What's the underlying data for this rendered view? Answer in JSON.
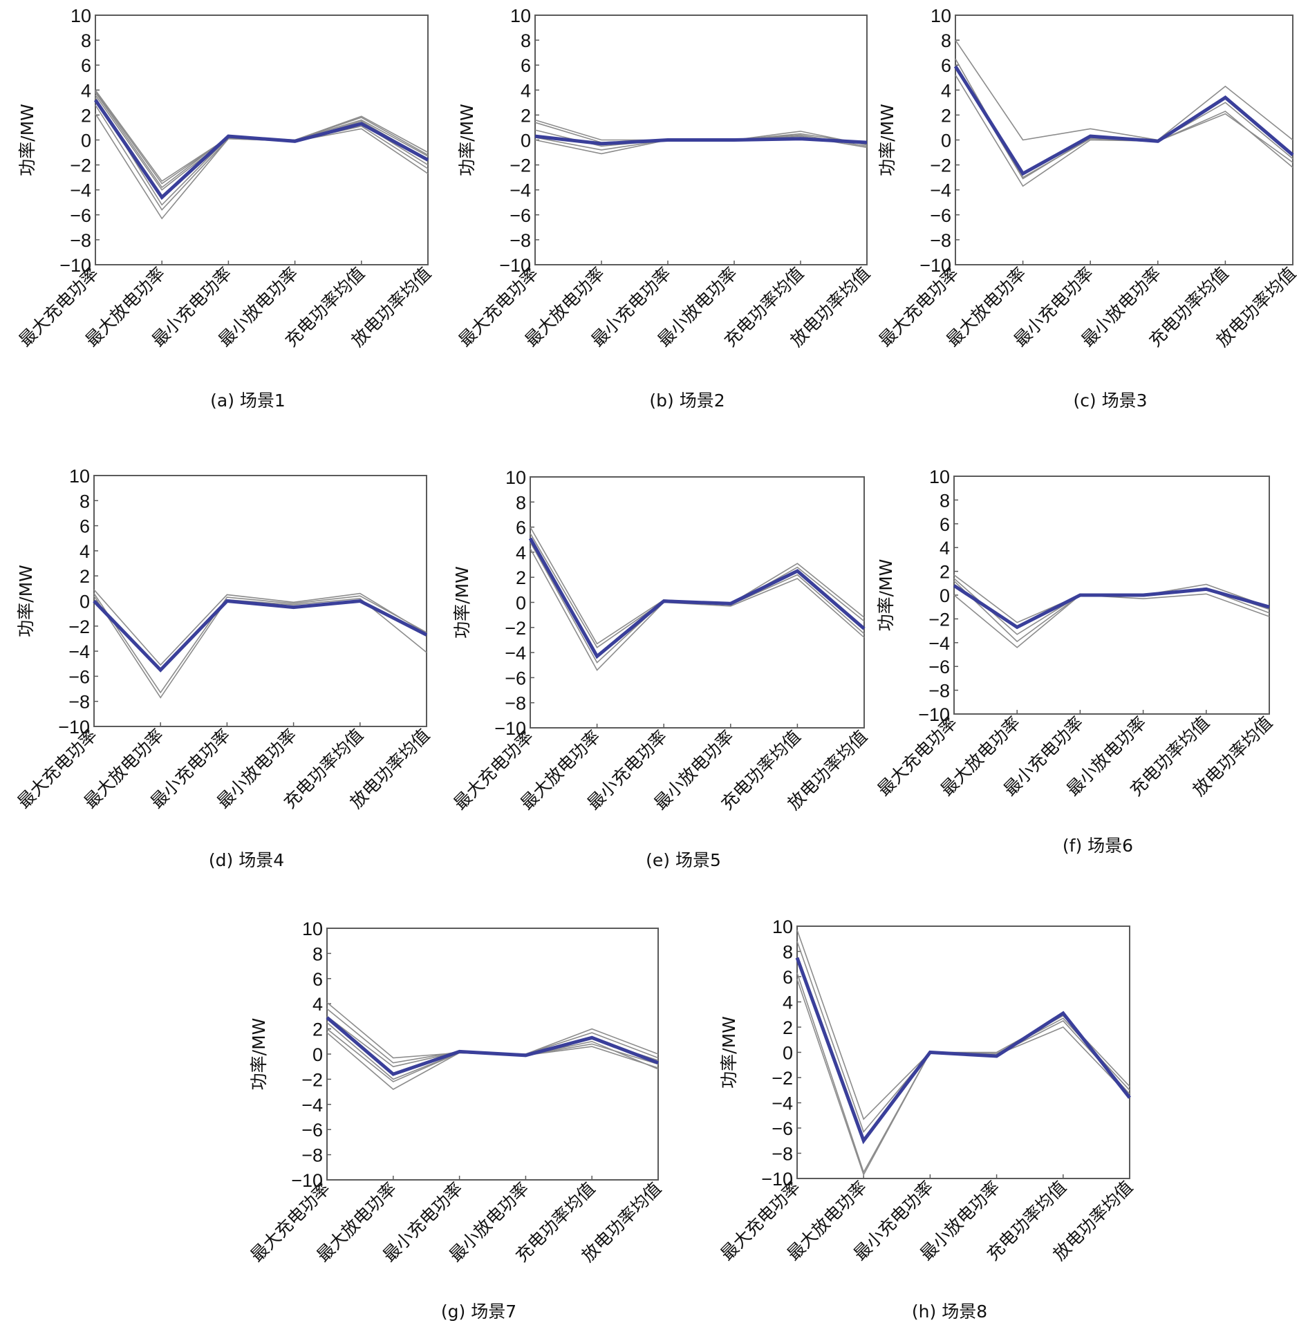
{
  "figure": {
    "colors": {
      "mean_line": "#3a3f9a",
      "sample_lines": "#8c8c8c",
      "frame": "#5a5a5a"
    }
  },
  "chart_data": [
    {
      "id": "a",
      "type": "line",
      "title": "(a) 场景1",
      "xlabel": "",
      "ylabel": "功率/MW",
      "categories": [
        "最大充电功率",
        "最大放电功率",
        "最小充电功率",
        "最小放电功率",
        "充电功率均值",
        "放电功率均值"
      ],
      "ylim": [
        -10,
        10
      ],
      "yticks": [
        10,
        8,
        6,
        4,
        2,
        0,
        -2,
        -4,
        -6,
        -8,
        -10
      ],
      "ytick_labels": [
        "10",
        "8",
        "6",
        "4",
        "2",
        "0",
        "−2",
        "−4",
        "−6",
        "−8",
        "−10"
      ],
      "grid": false,
      "series": [
        {
          "name": "sample",
          "values": [
            4.0,
            -3.3,
            0.2,
            0.0,
            1.9,
            -1.0
          ]
        },
        {
          "name": "sample",
          "values": [
            3.9,
            -3.5,
            0.2,
            0.0,
            1.8,
            -1.2
          ]
        },
        {
          "name": "sample",
          "values": [
            3.8,
            -3.8,
            0.3,
            0.0,
            1.6,
            -1.3
          ]
        },
        {
          "name": "sample",
          "values": [
            3.6,
            -4.0,
            0.2,
            -0.1,
            1.5,
            -1.6
          ]
        },
        {
          "name": "sample",
          "values": [
            3.4,
            -5.2,
            0.2,
            -0.1,
            1.3,
            -2.0
          ]
        },
        {
          "name": "sample",
          "values": [
            2.8,
            -5.6,
            0.1,
            -0.1,
            1.1,
            -2.3
          ]
        },
        {
          "name": "sample",
          "values": [
            2.1,
            -6.3,
            0.1,
            -0.1,
            0.9,
            -2.7
          ]
        },
        {
          "name": "mean",
          "values": [
            3.2,
            -4.6,
            0.3,
            -0.1,
            1.3,
            -1.6
          ]
        }
      ]
    },
    {
      "id": "b",
      "type": "line",
      "title": "(b) 场景2",
      "xlabel": "",
      "ylabel": "功率/MW",
      "categories": [
        "最大充电功率",
        "最大放电功率",
        "最小充电功率",
        "最小放电功率",
        "充电功率均值",
        "放电功率均值"
      ],
      "ylim": [
        -10,
        10
      ],
      "yticks": [
        10,
        8,
        6,
        4,
        2,
        0,
        -2,
        -4,
        -6,
        -8,
        -10
      ],
      "ytick_labels": [
        "10",
        "8",
        "6",
        "4",
        "2",
        "0",
        "−2",
        "−4",
        "−6",
        "−8",
        "−10"
      ],
      "grid": false,
      "series": [
        {
          "name": "sample",
          "values": [
            1.6,
            0.0,
            0.0,
            0.0,
            0.7,
            -0.4
          ]
        },
        {
          "name": "sample",
          "values": [
            1.4,
            -0.2,
            0.0,
            0.0,
            0.5,
            -0.3
          ]
        },
        {
          "name": "sample",
          "values": [
            0.8,
            -0.5,
            0.0,
            0.0,
            0.4,
            -0.5
          ]
        },
        {
          "name": "sample",
          "values": [
            0.2,
            -0.8,
            0.0,
            0.0,
            0.3,
            -0.6
          ]
        },
        {
          "name": "sample",
          "values": [
            0.0,
            -1.1,
            0.0,
            0.0,
            0.2,
            -0.2
          ]
        },
        {
          "name": "mean",
          "values": [
            0.3,
            -0.3,
            0.0,
            0.0,
            0.1,
            -0.2
          ]
        }
      ]
    },
    {
      "id": "c",
      "type": "line",
      "title": "(c) 场景3",
      "xlabel": "",
      "ylabel": "功率/MW",
      "categories": [
        "最大充电功率",
        "最大放电功率",
        "最小充电功率",
        "最小放电功率",
        "充电功率均值",
        "放电功率均值"
      ],
      "ylim": [
        -10,
        10
      ],
      "yticks": [
        10,
        8,
        6,
        4,
        2,
        0,
        -2,
        -4,
        -6,
        -8,
        -10
      ],
      "ytick_labels": [
        "10",
        "8",
        "6",
        "4",
        "2",
        "0",
        "−2",
        "−4",
        "−6",
        "−8",
        "−10"
      ],
      "grid": false,
      "series": [
        {
          "name": "sample",
          "values": [
            8.0,
            0.0,
            0.9,
            0.0,
            4.3,
            0.0
          ]
        },
        {
          "name": "sample",
          "values": [
            6.5,
            -3.0,
            0.1,
            -0.1,
            3.0,
            -1.5
          ]
        },
        {
          "name": "sample",
          "values": [
            5.2,
            -3.7,
            0.0,
            -0.1,
            2.3,
            -2.2
          ]
        },
        {
          "name": "sample",
          "values": [
            6.0,
            -3.1,
            0.2,
            -0.1,
            2.1,
            -1.8
          ]
        },
        {
          "name": "mean",
          "values": [
            5.9,
            -2.7,
            0.3,
            -0.1,
            3.4,
            -1.2
          ]
        }
      ]
    },
    {
      "id": "d",
      "type": "line",
      "title": "(d) 场景4",
      "xlabel": "",
      "ylabel": "功率/MW",
      "categories": [
        "最大充电功率",
        "最大放电功率",
        "最小充电功率",
        "最小放电功率",
        "充电功率均值",
        "放电功率均值"
      ],
      "ylim": [
        -10,
        10
      ],
      "yticks": [
        10,
        8,
        6,
        4,
        2,
        0,
        -2,
        -4,
        -6,
        -8,
        -10
      ],
      "ytick_labels": [
        "10",
        "8",
        "6",
        "4",
        "2",
        "0",
        "−2",
        "−4",
        "−6",
        "−8",
        "−10"
      ],
      "grid": false,
      "series": [
        {
          "name": "sample",
          "values": [
            0.9,
            -5.1,
            0.5,
            -0.1,
            0.6,
            -2.6
          ]
        },
        {
          "name": "sample",
          "values": [
            0.6,
            -7.3,
            0.3,
            -0.2,
            0.4,
            -2.5
          ]
        },
        {
          "name": "sample",
          "values": [
            0.4,
            -7.7,
            0.1,
            -0.3,
            0.2,
            -4.1
          ]
        },
        {
          "name": "mean",
          "values": [
            0.0,
            -5.5,
            0.0,
            -0.5,
            0.0,
            -2.7
          ]
        }
      ]
    },
    {
      "id": "e",
      "type": "line",
      "title": "(e) 场景5",
      "xlabel": "",
      "ylabel": "功率/MW",
      "categories": [
        "最大充电功率",
        "最大放电功率",
        "最小充电功率",
        "最小放电功率",
        "充电功率均值",
        "放电功率均值"
      ],
      "ylim": [
        -10,
        10
      ],
      "yticks": [
        10,
        8,
        6,
        4,
        2,
        0,
        -2,
        -4,
        -6,
        -8,
        -10
      ],
      "ytick_labels": [
        "10",
        "8",
        "6",
        "4",
        "2",
        "0",
        "−2",
        "−4",
        "−6",
        "−8",
        "−10"
      ],
      "grid": false,
      "series": [
        {
          "name": "sample",
          "values": [
            6.0,
            -3.3,
            0.2,
            -0.1,
            3.1,
            -1.2
          ]
        },
        {
          "name": "sample",
          "values": [
            5.5,
            -3.6,
            0.1,
            -0.2,
            2.8,
            -1.5
          ]
        },
        {
          "name": "sample",
          "values": [
            4.8,
            -4.8,
            0.1,
            -0.2,
            2.2,
            -2.5
          ]
        },
        {
          "name": "sample",
          "values": [
            4.3,
            -5.4,
            0.0,
            -0.3,
            1.9,
            -2.8
          ]
        },
        {
          "name": "mean",
          "values": [
            5.1,
            -4.3,
            0.1,
            -0.1,
            2.5,
            -2.1
          ]
        }
      ]
    },
    {
      "id": "f",
      "type": "line",
      "title": "(f) 场景6",
      "xlabel": "",
      "ylabel": "功率/MW",
      "categories": [
        "最大充电功率",
        "最大放电功率",
        "最小充电功率",
        "最小放电功率",
        "充电功率均值",
        "放电功率均值"
      ],
      "ylim": [
        -10,
        10
      ],
      "yticks": [
        10,
        8,
        6,
        4,
        2,
        0,
        -2,
        -4,
        -6,
        -8,
        -10
      ],
      "ytick_labels": [
        "10",
        "8",
        "6",
        "4",
        "2",
        "0",
        "−2",
        "−4",
        "−6",
        "−8",
        "−10"
      ],
      "grid": false,
      "series": [
        {
          "name": "sample",
          "values": [
            1.7,
            -2.3,
            0.0,
            0.0,
            0.9,
            -1.0
          ]
        },
        {
          "name": "sample",
          "values": [
            1.4,
            -3.3,
            0.0,
            0.0,
            0.6,
            -1.2
          ]
        },
        {
          "name": "sample",
          "values": [
            1.2,
            -3.9,
            0.0,
            -0.1,
            0.5,
            -1.5
          ]
        },
        {
          "name": "sample",
          "values": [
            0.0,
            -4.4,
            0.0,
            -0.3,
            0.1,
            -1.8
          ]
        },
        {
          "name": "mean",
          "values": [
            0.8,
            -2.7,
            0.0,
            0.0,
            0.5,
            -1.0
          ]
        }
      ]
    },
    {
      "id": "g",
      "type": "line",
      "title": "(g) 场景7",
      "xlabel": "",
      "ylabel": "功率/MW",
      "categories": [
        "最大充电功率",
        "最大放电功率",
        "最小充电功率",
        "最小放电功率",
        "充电功率均值",
        "放电功率均值"
      ],
      "ylim": [
        -10,
        10
      ],
      "yticks": [
        10,
        8,
        6,
        4,
        2,
        0,
        -2,
        -4,
        -6,
        -8,
        -10
      ],
      "ytick_labels": [
        "10",
        "8",
        "6",
        "4",
        "2",
        "0",
        "−2",
        "−4",
        "−6",
        "−8",
        "−10"
      ],
      "grid": false,
      "series": [
        {
          "name": "sample",
          "values": [
            4.1,
            -0.3,
            0.1,
            0.0,
            2.0,
            0.0
          ]
        },
        {
          "name": "sample",
          "values": [
            3.6,
            -0.7,
            0.2,
            0.0,
            1.7,
            -0.3
          ]
        },
        {
          "name": "sample",
          "values": [
            3.0,
            -1.0,
            0.2,
            -0.1,
            1.2,
            -0.5
          ]
        },
        {
          "name": "sample",
          "values": [
            2.5,
            -2.0,
            0.1,
            -0.1,
            0.8,
            -0.8
          ]
        },
        {
          "name": "sample",
          "values": [
            2.0,
            -2.2,
            0.1,
            -0.1,
            0.6,
            -1.1
          ]
        },
        {
          "name": "sample",
          "values": [
            1.7,
            -2.8,
            0.1,
            -0.1,
            1.0,
            -1.2
          ]
        },
        {
          "name": "mean",
          "values": [
            2.9,
            -1.6,
            0.2,
            -0.1,
            1.3,
            -0.7
          ]
        }
      ]
    },
    {
      "id": "h",
      "type": "line",
      "title": "(h) 场景8",
      "xlabel": "",
      "ylabel": "功率/MW",
      "categories": [
        "最大充电功率",
        "最大放电功率",
        "最小充电功率",
        "最小放电功率",
        "充电功率均值",
        "放电功率均值"
      ],
      "ylim": [
        -10,
        10
      ],
      "yticks": [
        10,
        8,
        6,
        4,
        2,
        0,
        -2,
        -4,
        -6,
        -8,
        -10
      ],
      "ytick_labels": [
        "10",
        "8",
        "6",
        "4",
        "2",
        "0",
        "−2",
        "−4",
        "−6",
        "−8",
        "−10"
      ],
      "grid": false,
      "series": [
        {
          "name": "sample",
          "values": [
            9.7,
            -5.3,
            0.0,
            0.0,
            2.9,
            -2.7
          ]
        },
        {
          "name": "sample",
          "values": [
            8.8,
            -6.3,
            0.0,
            -0.1,
            2.7,
            -3.0
          ]
        },
        {
          "name": "sample",
          "values": [
            6.3,
            -9.5,
            0.0,
            -0.2,
            2.5,
            -3.3
          ]
        },
        {
          "name": "sample",
          "values": [
            5.8,
            -9.7,
            0.0,
            -0.2,
            2.0,
            -3.5
          ]
        },
        {
          "name": "mean",
          "values": [
            7.5,
            -7.0,
            0.0,
            -0.3,
            3.1,
            -3.6
          ]
        }
      ]
    }
  ]
}
